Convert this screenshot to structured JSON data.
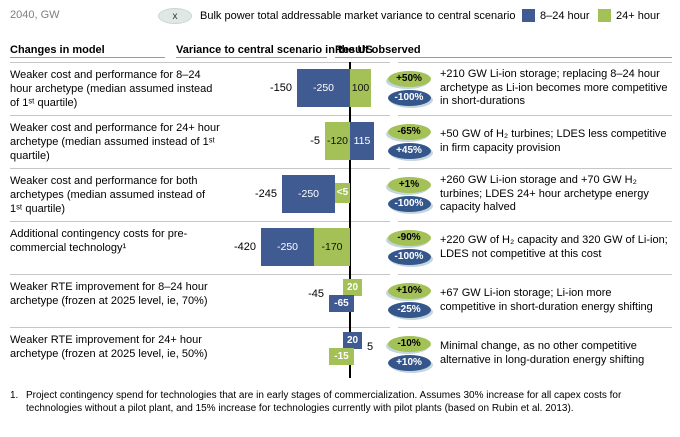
{
  "meta": {
    "unit_label": "2040, GW"
  },
  "legend": {
    "marker": "x",
    "caption": "Bulk power total addressable market variance to central scenario",
    "series": [
      {
        "name": "8–24 hour",
        "color": "#3f5b92"
      },
      {
        "name": "24+ hour",
        "color": "#a3c156"
      }
    ]
  },
  "columns": {
    "changes": "Changes in model",
    "variance": "Variance to central scenario in the US",
    "result": "Result observed"
  },
  "colors": {
    "blue_8_24": "#3f5b92",
    "green_24plus": "#a3c156",
    "badge_blue": "#35568b",
    "badge_halo": "#c2d6de",
    "axis": "#000000"
  },
  "rows": [
    {
      "change": "Weaker cost and performance for 8–24 hour archetype (median assumed instead of 1ˢᵗ quartile)",
      "net": "-150",
      "net_gw": -150,
      "bar_style": "inline",
      "bars": [
        {
          "series": "blue",
          "label": "-250",
          "gw": -250
        },
        {
          "series": "green",
          "label": "100",
          "gw": 100
        }
      ],
      "badges": [
        {
          "color": "green",
          "label": "+50%"
        },
        {
          "color": "blue",
          "label": "-100%"
        }
      ],
      "result": "+210 GW Li-ion storage; replacing 8–24 hour archetype as Li-ion becomes more competitive in short-durations"
    },
    {
      "change": "Weaker cost and performance for 24+ hour archetype (median assumed instead of 1ˢᵗ quartile)",
      "net": "-5",
      "net_gw": -5,
      "bar_style": "inline",
      "bars": [
        {
          "series": "green",
          "label": "-120",
          "gw": -120
        },
        {
          "series": "blue",
          "label": "115",
          "gw": 115
        }
      ],
      "badges": [
        {
          "color": "green",
          "label": "-65%"
        },
        {
          "color": "blue",
          "label": "+45%"
        }
      ],
      "result": "+50 GW of H₂ turbines; LDES less competitive in firm capacity provision"
    },
    {
      "change": "Weaker cost and performance for both archetypes (median assumed instead of 1ˢᵗ quartile)",
      "net": "-245",
      "net_gw": -245,
      "bar_style": "inline",
      "bars": [
        {
          "series": "blue",
          "label": "-250",
          "gw": -250
        },
        {
          "series": "green",
          "label": "<5",
          "gw": 5,
          "small": true,
          "side": "neg"
        }
      ],
      "badges": [
        {
          "color": "green",
          "label": "+1%"
        },
        {
          "color": "blue",
          "label": "-100%"
        }
      ],
      "result": "+260 GW Li-ion storage and +70 GW H₂ turbines; LDES 24+ hour archetype energy capacity halved"
    },
    {
      "change": "Additional contingency costs for pre-commercial technology¹",
      "net": "-420",
      "net_gw": -420,
      "bar_style": "inline",
      "bars": [
        {
          "series": "blue",
          "label": "-250",
          "gw": -250
        },
        {
          "series": "green",
          "label": "-170",
          "gw": -170
        }
      ],
      "badges": [
        {
          "color": "green",
          "label": "-90%"
        },
        {
          "color": "blue",
          "label": "-100%"
        }
      ],
      "result": "+220 GW of H₂ capacity and 320 GW of Li-ion; LDES not competitive at this cost"
    },
    {
      "change": "Weaker RTE improvement for 8–24 hour archetype (frozen at 2025 level, ie, 70%)",
      "net": "-45",
      "net_gw": -45,
      "bar_style": "offset",
      "bars": [
        {
          "series": "green",
          "label": "20",
          "gw": 20
        },
        {
          "series": "blue",
          "label": "-65",
          "gw": -65
        }
      ],
      "badges": [
        {
          "color": "green",
          "label": "+10%"
        },
        {
          "color": "blue",
          "label": "-25%"
        }
      ],
      "result": "+67 GW Li-ion storage; Li-ion more competitive in short-duration energy shifting"
    },
    {
      "change": "Weaker RTE improvement for 24+ hour archetype (frozen at 2025 level, ie, 50%)",
      "net": "5",
      "net_gw": 5,
      "bar_style": "offset",
      "bars": [
        {
          "series": "blue",
          "label": "20",
          "gw": 20
        },
        {
          "series": "green",
          "label": "-15",
          "gw": -15
        }
      ],
      "badges": [
        {
          "color": "green",
          "label": "-10%"
        },
        {
          "color": "blue",
          "label": "+10%"
        }
      ],
      "result": "Minimal change, as no other competitive alternative in long-duration energy shifting"
    }
  ],
  "footnote": {
    "marker": "1.",
    "text": "Project contingency spend for technologies that are in early stages of commercialization.  Assumes 30% increase for all capex costs for technologies without a pilot plant, and 15% increase for technologies currently with pilot plants (based on Rubin et al. 2013)."
  },
  "chart_data": {
    "type": "bar",
    "subtype": "diverging_tornado",
    "title": "Bulk power total addressable market variance to central scenario",
    "unit": "GW",
    "period_label": "2040, GW",
    "xlabel": "Variance to central scenario in the US",
    "legend_position": "top-right",
    "grid": false,
    "categories": [
      "Weaker cost and performance for 8–24 hour archetype (median assumed instead of 1st quartile)",
      "Weaker cost and performance for 24+ hour archetype (median assumed instead of 1st quartile)",
      "Weaker cost and performance for both archetypes (median assumed instead of 1st quartile)",
      "Additional contingency costs for pre-commercial technology (1)",
      "Weaker RTE improvement for 8–24 hour archetype (frozen at 2025 level, ie, 70%)",
      "Weaker RTE improvement for 24+ hour archetype (frozen at 2025 level, ie, 50%)"
    ],
    "series": [
      {
        "name": "8–24 hour",
        "color": "#3f5b92",
        "values": [
          -250,
          115,
          -250,
          -250,
          -65,
          20
        ],
        "pct_variance": [
          "-100%",
          "+45%",
          "-100%",
          "-100%",
          "-25%",
          "+10%"
        ]
      },
      {
        "name": "24+ hour",
        "color": "#a3c156",
        "values": [
          100,
          -120,
          5,
          -170,
          20,
          -15
        ],
        "value_labels": [
          "100",
          "-120",
          "<5",
          "-170",
          "20",
          "-15"
        ],
        "pct_variance": [
          "+50%",
          "-65%",
          "+1%",
          "-90%",
          "+10%",
          "-10%"
        ]
      }
    ],
    "totals": [
      -150,
      -5,
      -245,
      -420,
      -45,
      5
    ],
    "results_observed": [
      "+210 GW Li-ion storage; replacing 8–24 hour archetype as Li-ion becomes more competitive in short-durations",
      "+50 GW of H₂ turbines; LDES less competitive in firm capacity provision",
      "+260 GW Li-ion storage and +70 GW H₂ turbines; LDES 24+ hour archetype energy capacity halved",
      "+220 GW of H₂ capacity and 320 GW of Li-ion; LDES not competitive at this cost",
      "+67 GW Li-ion storage; Li-ion more competitive in short-duration energy shifting",
      "Minimal change, as no other competitive alternative in long-duration energy shifting"
    ]
  }
}
